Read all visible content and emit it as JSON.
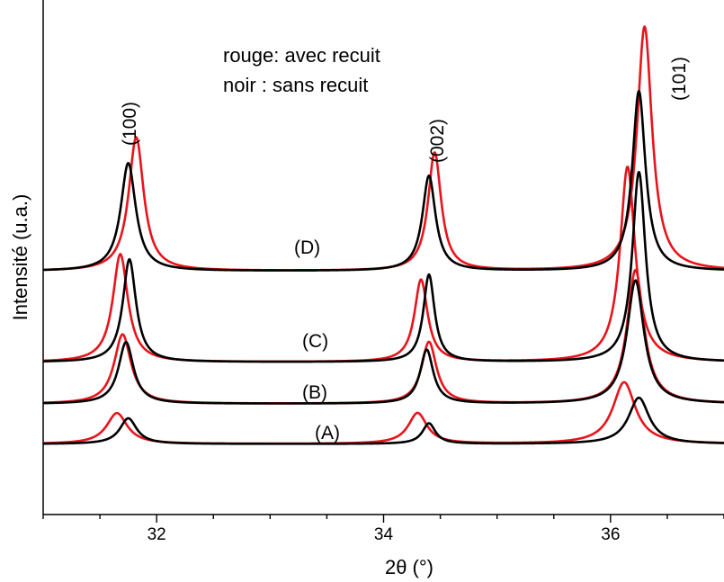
{
  "chart_data": {
    "type": "line",
    "title": "",
    "xlabel": "2θ  (°)",
    "ylabel": "Intensité (u.a.)",
    "xlim": [
      31.0,
      37.0
    ],
    "ylim": [
      0,
      100
    ],
    "x_ticks": [
      32,
      34,
      36
    ],
    "x_tick_labels": [
      "32",
      "34",
      "36"
    ],
    "grid": false,
    "legend_placement": "top-center",
    "annotations": [
      "rouge: avec recuit",
      "noir : sans recuit"
    ],
    "peak_labels": [
      "(100)",
      "(002)",
      "(101)"
    ],
    "colors": {
      "annealed": "#e8141b",
      "unannealed": "#000000"
    },
    "samples": [
      {
        "label": "(A)",
        "baseline": 13.7,
        "black": {
          "peaks": [
            [
              31.75,
              5.0,
              0.09
            ],
            [
              34.4,
              4.0,
              0.07
            ],
            [
              36.25,
              9.0,
              0.11
            ]
          ]
        },
        "red": {
          "peaks": [
            [
              31.65,
              6.0,
              0.11
            ],
            [
              34.3,
              6.0,
              0.1
            ],
            [
              36.12,
              12.0,
              0.12
            ]
          ]
        }
      },
      {
        "label": "(B)",
        "baseline": 21.5,
        "black": {
          "peaks": [
            [
              31.73,
              12.0,
              0.08
            ],
            [
              34.38,
              10.5,
              0.07
            ],
            [
              36.22,
              24.0,
              0.09
            ]
          ]
        },
        "red": {
          "peaks": [
            [
              31.7,
              13.5,
              0.09
            ],
            [
              34.4,
              12.0,
              0.08
            ],
            [
              36.22,
              26.0,
              0.09
            ]
          ]
        }
      },
      {
        "label": "(C)",
        "baseline": 29.6,
        "black": {
          "peaks": [
            [
              31.76,
              20.0,
              0.07
            ],
            [
              34.4,
              17.0,
              0.06
            ],
            [
              36.25,
              37.0,
              0.07
            ]
          ]
        },
        "red": {
          "peaks": [
            [
              31.68,
              21.0,
              0.08
            ],
            [
              34.33,
              16.0,
              0.07
            ],
            [
              36.15,
              38.0,
              0.08
            ]
          ]
        }
      },
      {
        "label": "(D)",
        "baseline": 47.3,
        "black": {
          "peaks": [
            [
              31.75,
              21.0,
              0.08
            ],
            [
              34.4,
              18.5,
              0.07
            ],
            [
              36.25,
              35.0,
              0.07
            ]
          ]
        },
        "red": {
          "peaks": [
            [
              31.82,
              26.0,
              0.08
            ],
            [
              34.45,
              23.0,
              0.07
            ],
            [
              36.3,
              47.5,
              0.08
            ]
          ]
        }
      }
    ]
  }
}
